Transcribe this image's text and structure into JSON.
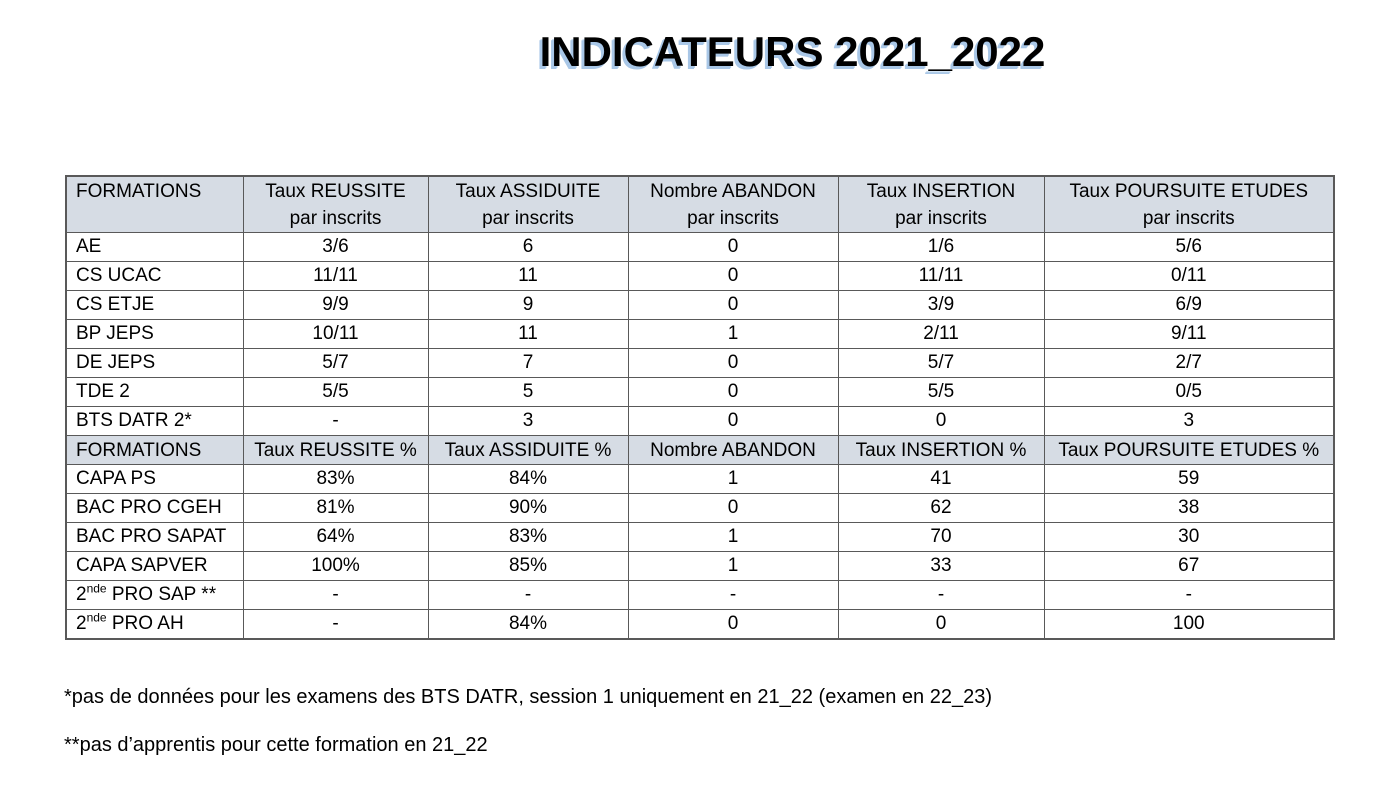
{
  "page": {
    "title": "INDICATEURS 2021_2022"
  },
  "colors": {
    "title_text": "#000000",
    "title_shadow": "#a9c7e7",
    "header_bg": "#d6dce4",
    "border": "#595959",
    "background": "#ffffff"
  },
  "table": {
    "sections": [
      {
        "header": [
          "FORMATIONS",
          "Taux REUSSITE\npar inscrits",
          "Taux ASSIDUITE\npar inscrits",
          "Nombre ABANDON\npar inscrits",
          "Taux INSERTION\npar inscrits",
          "Taux POURSUITE ETUDES\npar inscrits"
        ],
        "rows": [
          {
            "formation": "AE",
            "values": [
              "3/6",
              "6",
              "0",
              "1/6",
              "5/6"
            ]
          },
          {
            "formation": "CS UCAC",
            "values": [
              "11/11",
              "11",
              "0",
              "11/11",
              "0/11"
            ]
          },
          {
            "formation": "CS ETJE",
            "values": [
              "9/9",
              "9",
              "0",
              "3/9",
              "6/9"
            ]
          },
          {
            "formation": "BP JEPS",
            "values": [
              "10/11",
              "11",
              "1",
              "2/11",
              "9/11"
            ]
          },
          {
            "formation": "DE JEPS",
            "values": [
              "5/7",
              "7",
              "0",
              "5/7",
              "2/7"
            ]
          },
          {
            "formation": "TDE 2",
            "values": [
              "5/5",
              "5",
              "0",
              "5/5",
              "0/5"
            ]
          },
          {
            "formation": "BTS DATR 2*",
            "values": [
              "-",
              "3",
              "0",
              "0",
              "3"
            ]
          }
        ]
      },
      {
        "header": [
          "FORMATIONS",
          "Taux REUSSITE %",
          "Taux ASSIDUITE %",
          "Nombre ABANDON",
          "Taux INSERTION %",
          "Taux POURSUITE ETUDES %"
        ],
        "rows": [
          {
            "formation": "CAPA PS",
            "values": [
              "83%",
              "84%",
              "1",
              "41",
              "59"
            ]
          },
          {
            "formation": "BAC PRO CGEH",
            "values": [
              "81%",
              "90%",
              "0",
              "62",
              "38"
            ]
          },
          {
            "formation": "BAC PRO SAPAT",
            "values": [
              "64%",
              "83%",
              "1",
              "70",
              "30"
            ]
          },
          {
            "formation": "CAPA SAPVER",
            "values": [
              "100%",
              "85%",
              "1",
              "33",
              "67"
            ]
          },
          {
            "formation": {
              "base": "2",
              "sup": "nde",
              "rest": " PRO SAP **"
            },
            "values": [
              "-",
              "-",
              "-",
              "-",
              "-"
            ]
          },
          {
            "formation": {
              "base": "2",
              "sup": "nde",
              "rest": " PRO AH"
            },
            "values": [
              "-",
              "84%",
              "0",
              "0",
              "100"
            ]
          }
        ]
      }
    ]
  },
  "footnotes": [
    "*pas de données pour les examens des BTS DATR, session 1 uniquement en 21_22 (examen en 22_23)",
    "**pas d’apprentis pour cette formation en 21_22"
  ]
}
